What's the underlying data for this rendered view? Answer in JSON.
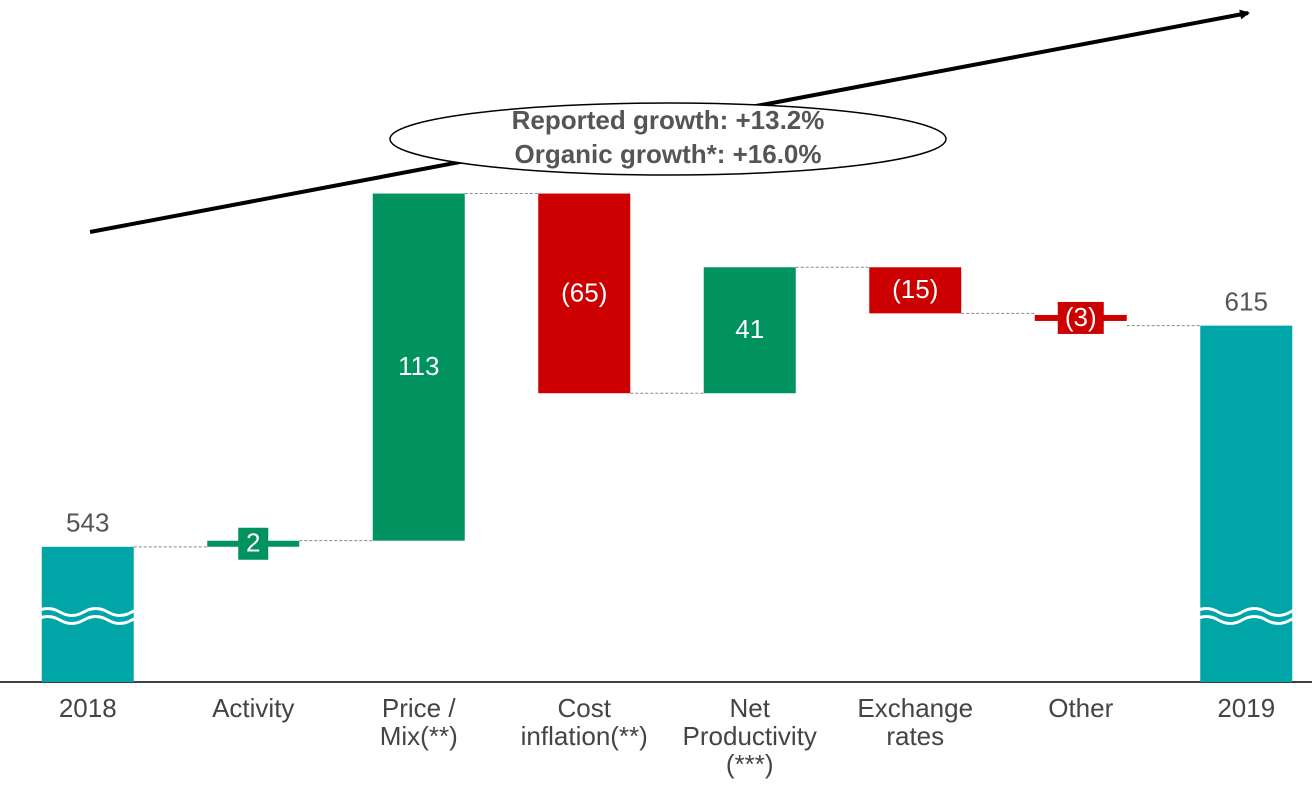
{
  "chart_data": {
    "type": "waterfall",
    "categories": [
      [
        "2018"
      ],
      [
        "Activity"
      ],
      [
        "Price /",
        "Mix(**)"
      ],
      [
        "Cost",
        "inflation(**)"
      ],
      [
        "Net",
        "Productivity",
        "(***)"
      ],
      [
        "Exchange",
        "rates"
      ],
      [
        "Other"
      ],
      [
        "2019"
      ]
    ],
    "values": [
      543,
      2,
      113,
      -65,
      41,
      -15,
      -3,
      615
    ],
    "value_labels": [
      "543",
      "2",
      "113",
      "(65)",
      "41",
      "(15)",
      "(3)",
      "615"
    ],
    "colors": {
      "total": "#00a5a8",
      "increase": "#00925f",
      "decrease": "#cc0000"
    },
    "ylim": [
      499,
      721
    ],
    "annotations": [
      "Reported growth: +13.2%",
      "Organic growth*: +16.0%"
    ]
  }
}
